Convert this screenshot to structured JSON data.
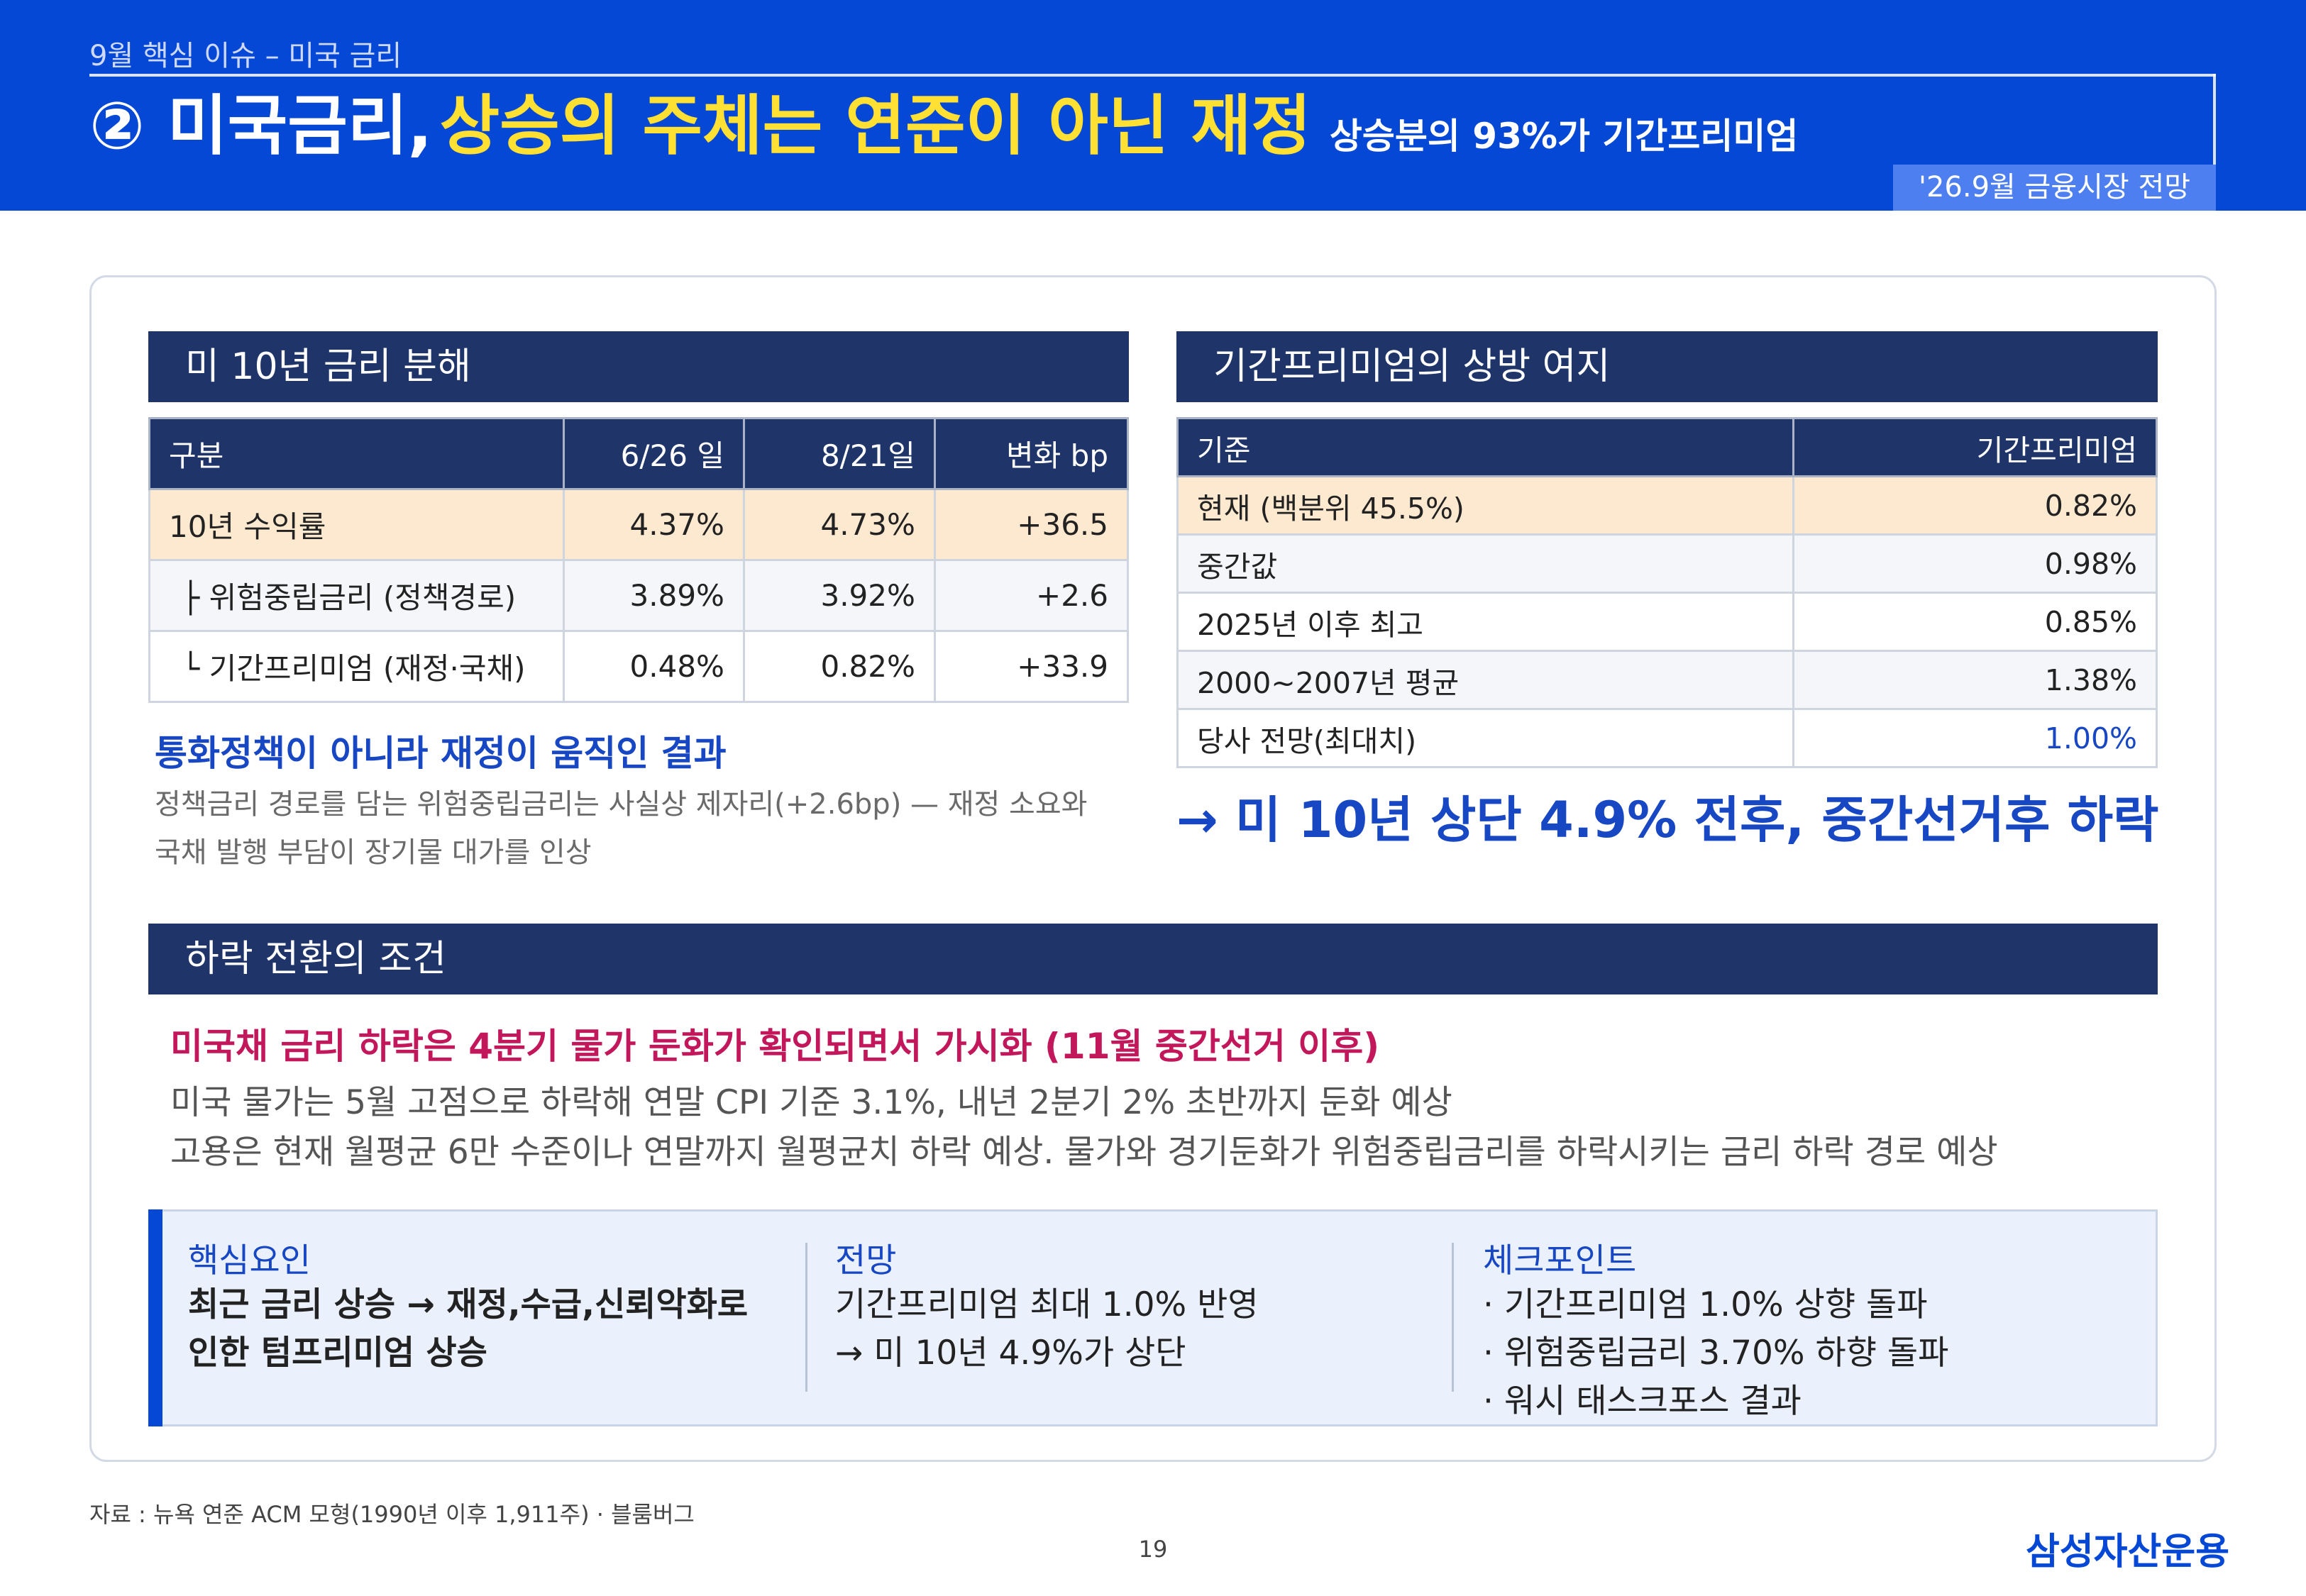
{
  "header": {
    "kicker": "9월 핵심 이슈 – 미국 금리",
    "title_main": "② 미국금리,",
    "title_highlight": "상승의 주체는 연준이 아닌 재정",
    "title_sub": "상승분의 93%가 기간프리미엄",
    "report_badge": "'26.9월 금융시장 전망",
    "colors": {
      "header_bg": "#0648d6",
      "highlight": "#ffe033",
      "navy": "#1f3569",
      "accent_blue": "#1747c2",
      "magenta": "#c2185b"
    }
  },
  "decomposition": {
    "title": "미 10년 금리 분해",
    "columns": [
      "구분",
      "6/26 일",
      "8/21일",
      "변화  bp"
    ],
    "rows": [
      [
        "10년 수익률",
        "4.37%",
        "4.73%",
        "+36.5"
      ],
      [
        "├ 위험중립금리 (정책경로)",
        "3.89%",
        "3.92%",
        "+2.6"
      ],
      [
        "└ 기간프리미엄 (재정·국채)",
        "0.48%",
        "0.82%",
        "+33.9"
      ]
    ],
    "note_title": "통화정책이 아니라 재정이 움직인 결과",
    "note_lines": [
      "정책금리 경로를 담는 위험중립금리는 사실상 제자리(+2.6bp) — 재정 소요와",
      "국채 발행 부담이 장기물 대가를 인상"
    ]
  },
  "upside": {
    "title": "기간프리미엄의 상방 여지",
    "columns": [
      "기준",
      "기간프리미엄"
    ],
    "rows": [
      [
        "현재  (백분위 45.5%)",
        "0.82%"
      ],
      [
        "중간값",
        "0.98%"
      ],
      [
        "2025년 이후 최고",
        "0.85%"
      ],
      [
        "2000~2007년 평균",
        "1.38%"
      ],
      [
        "당사 전망(최대치)",
        "1.00%"
      ]
    ],
    "conclusion": "→ 미 10년 상단 4.9% 전후, 중간선거후 하락"
  },
  "conditions": {
    "title": "하락 전환의 조건",
    "headline": "미국채 금리 하락은 4분기 물가 둔화가 확인되면서 가시화 (11월 중간선거 이후)",
    "lines": [
      "미국 물가는 5월 고점으로 하락해 연말 CPI 기준 3.1%, 내년 2분기 2% 초반까지 둔화 예상",
      "고용은 현재 월평균 6만 수준이나 연말까지 월평균치 하락 예상. 물가와 경기둔화가 위험중립금리를 하락시키는 금리 하락 경로 예상"
    ]
  },
  "summary": {
    "columns": [
      {
        "title": "핵심요인",
        "lines": [
          "최근 금리 상승 → 재정,수급,신뢰악화로",
          "인한 텀프리미엄 상승"
        ]
      },
      {
        "title": "전망",
        "lines": [
          "기간프리미엄 최대 1.0% 반영",
          "→ 미 10년 4.9%가 상단"
        ]
      },
      {
        "title": "체크포인트",
        "lines": [
          "· 기간프리미엄 1.0% 상향 돌파",
          "· 위험중립금리 3.70% 하향 돌파",
          "· 워시 태스크포스 결과"
        ]
      }
    ]
  },
  "footer": {
    "source": "자료 : 뉴욕 연준 ACM 모형(1990년 이후 1,911주) · 블룸버그",
    "page_number": "19",
    "brand": "삼성자산운용"
  }
}
